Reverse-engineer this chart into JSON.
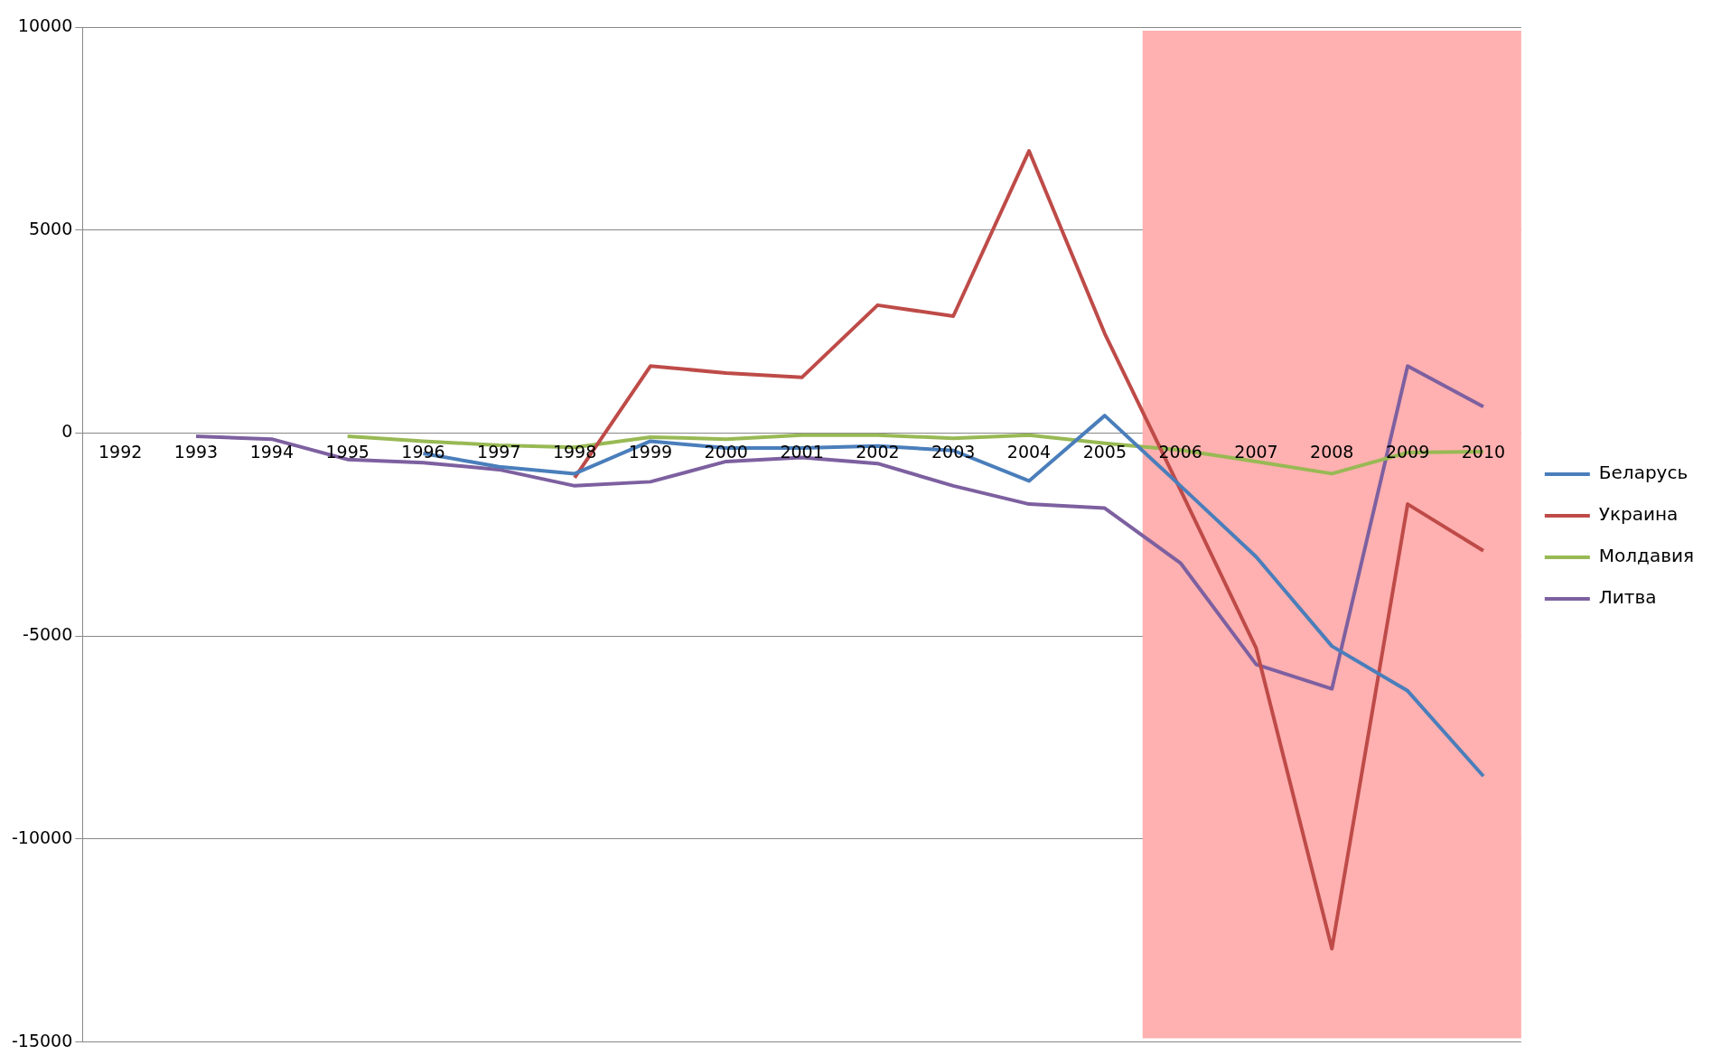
{
  "chart_data": {
    "type": "line",
    "categories": [
      "1992",
      "1993",
      "1994",
      "1995",
      "1996",
      "1997",
      "1998",
      "1999",
      "2000",
      "2001",
      "2002",
      "2003",
      "2004",
      "2005",
      "2006",
      "2007",
      "2008",
      "2009",
      "2010"
    ],
    "series": [
      {
        "name": "Беларусь",
        "color": "#4a7ebb",
        "values": [
          null,
          null,
          null,
          null,
          -500,
          -830,
          -1000,
          -200,
          -370,
          -370,
          -320,
          -430,
          -1180,
          430,
          -1300,
          -3050,
          -5250,
          -6350,
          -8450
        ]
      },
      {
        "name": "Украина",
        "color": "#be4b48",
        "values": [
          null,
          null,
          null,
          null,
          null,
          null,
          -1100,
          1650,
          1480,
          1370,
          3150,
          2880,
          6950,
          2450,
          -1400,
          -5300,
          -12700,
          -1750,
          -2900
        ]
      },
      {
        "name": "Молдавия",
        "color": "#98b954",
        "values": [
          null,
          null,
          null,
          -80,
          -200,
          -300,
          -350,
          -100,
          -150,
          -50,
          -50,
          -130,
          -50,
          -250,
          -420,
          -700,
          -1000,
          -480,
          -460
        ]
      },
      {
        "name": "Литва",
        "color": "#7d60a0",
        "values": [
          null,
          -80,
          -150,
          -650,
          -730,
          -900,
          -1300,
          -1200,
          -700,
          -600,
          -750,
          -1300,
          -1750,
          -1850,
          -3200,
          -5700,
          -6300,
          1650,
          650
        ]
      }
    ],
    "ylim": [
      -15000,
      10000
    ],
    "yticks": [
      -15000,
      -10000,
      -5000,
      0,
      5000,
      10000
    ],
    "grid": "y",
    "legend": "right",
    "bands": [
      {
        "axis": "x",
        "from": "2006",
        "to": "2010",
        "color": "#ffb0b0"
      }
    ]
  }
}
